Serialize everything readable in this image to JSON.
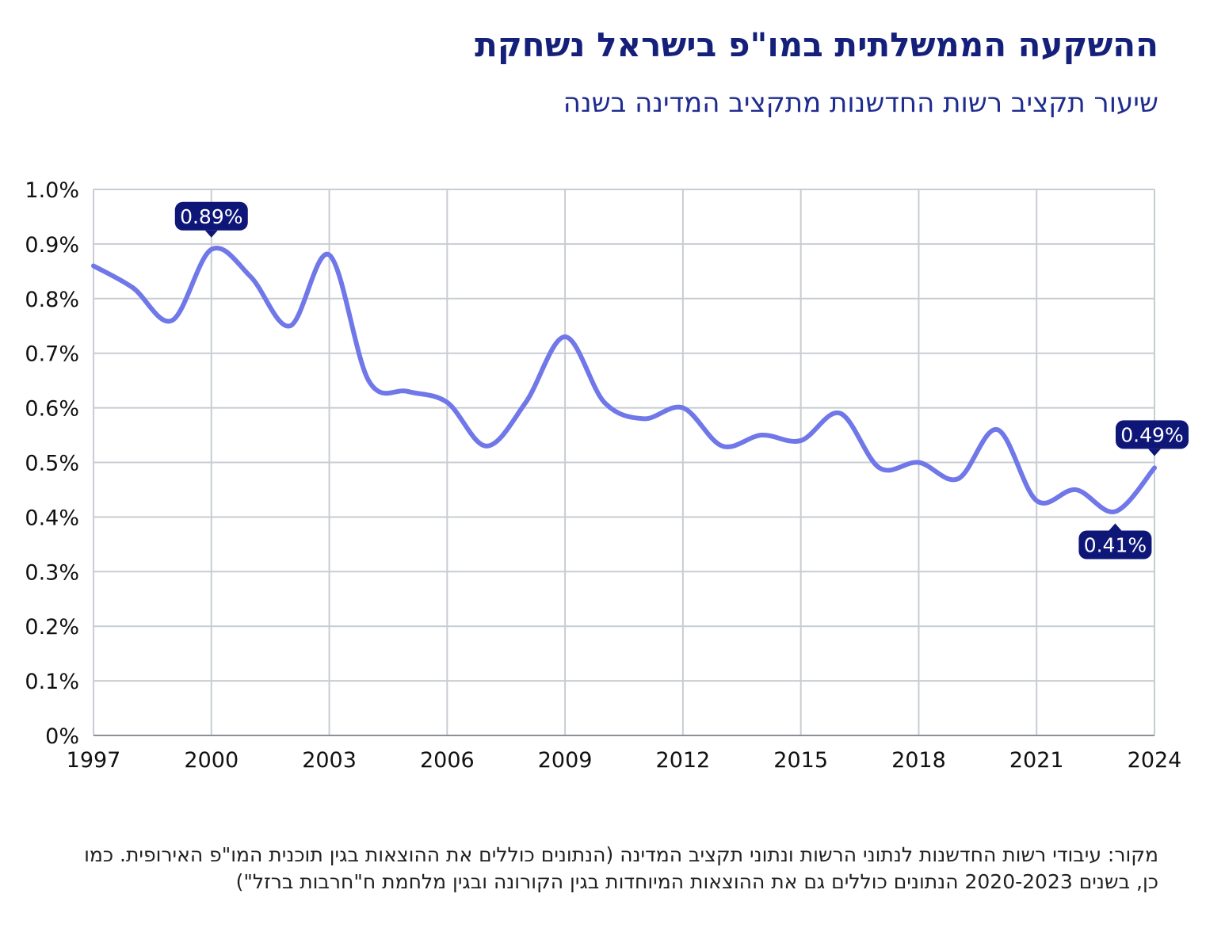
{
  "header": {
    "title": "ההשקעה הממשלתית במו\"פ בישראל נשחקת",
    "subtitle": "שיעור תקציב רשות החדשנות מתקציב המדינה בשנה"
  },
  "footer": {
    "source": "מקור: עיבודי רשות החדשנות לנתוני הרשות ונתוני תקציב המדינה (הנתונים כוללים את ההוצאות בגין תוכנית המו\"פ האירופית. כמו כן, בשנים 2020-2023 הנתונים כוללים גם את ההוצאות המיוחדות בגין הקורונה ובגין מלחמת ח\"חרבות ברזל\")"
  },
  "colors": {
    "line": "#7077e8",
    "label_bg": "#0e1778",
    "grid": "#c8cdd2",
    "title": "#14207a",
    "subtitle": "#1f2c8f"
  },
  "chart_data": {
    "type": "line",
    "title": "ההשקעה הממשלתית במו\"פ בישראל נשחקת",
    "subtitle": "שיעור תקציב רשות החדשנות מתקציב המדינה בשנה",
    "xlabel": "",
    "ylabel": "",
    "xlim": [
      1997,
      2024
    ],
    "ylim": [
      0,
      1.0
    ],
    "x_ticks": [
      1997,
      2000,
      2003,
      2006,
      2009,
      2012,
      2015,
      2018,
      2021,
      2024
    ],
    "y_ticks": [
      0,
      0.1,
      0.2,
      0.3,
      0.4,
      0.5,
      0.6,
      0.7,
      0.8,
      0.9,
      1.0
    ],
    "y_tick_labels": [
      "0%",
      "0.1%",
      "0.2%",
      "0.3%",
      "0.4%",
      "0.5%",
      "0.6%",
      "0.7%",
      "0.8%",
      "0.9%",
      "1.0%"
    ],
    "grid": true,
    "series": [
      {
        "name": "שיעור תקציב רשות החדשנות מתקציב המדינה",
        "x": [
          1997,
          1998,
          1999,
          2000,
          2001,
          2002,
          2003,
          2004,
          2005,
          2006,
          2007,
          2008,
          2009,
          2010,
          2011,
          2012,
          2013,
          2014,
          2015,
          2016,
          2017,
          2018,
          2019,
          2020,
          2021,
          2022,
          2023,
          2024
        ],
        "values": [
          0.86,
          0.82,
          0.76,
          0.89,
          0.84,
          0.75,
          0.88,
          0.65,
          0.63,
          0.61,
          0.53,
          0.61,
          0.73,
          0.61,
          0.58,
          0.6,
          0.53,
          0.55,
          0.54,
          0.59,
          0.49,
          0.5,
          0.47,
          0.56,
          0.43,
          0.45,
          0.41,
          0.49
        ]
      }
    ],
    "annotations": [
      {
        "x": 2000,
        "y": 0.89,
        "text": "0.89%",
        "placement": "above"
      },
      {
        "x": 2024,
        "y": 0.49,
        "text": "0.49%",
        "placement": "above"
      },
      {
        "x": 2023,
        "y": 0.41,
        "text": "0.41%",
        "placement": "below"
      }
    ]
  }
}
